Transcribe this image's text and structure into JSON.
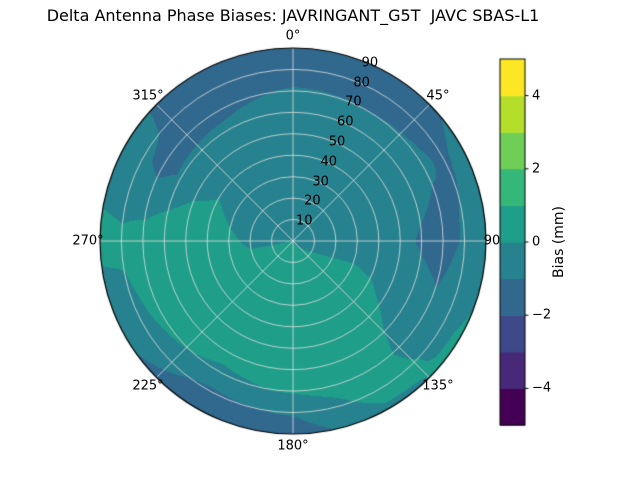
{
  "chart_data": {
    "type": "heatmap",
    "projection": "polar",
    "title": "Delta Antenna Phase Biases: JAVRINGANT_G5T  JAVC SBAS-L1",
    "azimuth_deg": [
      0,
      30,
      60,
      90,
      120,
      150,
      180,
      210,
      240,
      270,
      300,
      330
    ],
    "zenith_deg": [
      0,
      10,
      20,
      30,
      40,
      50,
      60,
      70,
      80,
      90
    ],
    "bias_mm": [
      [
        -0.2,
        -0.3,
        -0.4,
        -0.4,
        -0.3,
        -0.4,
        -0.6,
        -0.9,
        -1.4,
        -1.7
      ],
      [
        -0.2,
        -0.3,
        -0.4,
        -0.5,
        -0.5,
        -0.5,
        -0.7,
        -1.0,
        -1.5,
        -1.4
      ],
      [
        -0.2,
        -0.2,
        -0.3,
        -0.5,
        -0.6,
        -0.6,
        -0.7,
        -0.9,
        -1.1,
        -0.8
      ],
      [
        -0.2,
        -0.2,
        -0.3,
        -0.4,
        -0.6,
        -0.8,
        -1.1,
        -1.3,
        -0.9,
        -0.4
      ],
      [
        -0.1,
        0.0,
        0.1,
        0.2,
        0.1,
        -0.2,
        -0.6,
        -0.8,
        -0.3,
        0.2
      ],
      [
        0.0,
        0.2,
        0.4,
        0.5,
        0.6,
        0.7,
        0.6,
        0.5,
        0.4,
        -0.2
      ],
      [
        0.1,
        0.3,
        0.5,
        0.6,
        0.6,
        0.5,
        0.4,
        0.1,
        -0.9,
        -1.6
      ],
      [
        0.1,
        0.3,
        0.5,
        0.6,
        0.5,
        0.5,
        0.3,
        -0.2,
        -1.2,
        -1.5
      ],
      [
        0.1,
        0.2,
        0.4,
        0.6,
        0.7,
        0.8,
        0.6,
        0.3,
        -0.4,
        -0.9
      ],
      [
        0.0,
        -0.1,
        -0.2,
        0.2,
        0.6,
        0.9,
        0.8,
        0.5,
        0.2,
        0.3
      ],
      [
        -0.1,
        -0.3,
        -0.5,
        -0.3,
        0.0,
        -0.3,
        -0.9,
        -1.3,
        -0.8,
        -0.6
      ],
      [
        -0.2,
        -0.3,
        -0.5,
        -0.5,
        -0.3,
        -0.4,
        -0.8,
        -1.2,
        -1.5,
        -1.6
      ]
    ],
    "theta_tick_degrees": [
      0,
      45,
      90,
      135,
      180,
      225,
      270,
      315
    ],
    "theta_tick_labels": [
      "0°",
      "45°",
      "90",
      "135°",
      "180°",
      "225°",
      "270°",
      "315°"
    ],
    "radial_tick_values": [
      10,
      20,
      30,
      40,
      50,
      60,
      70,
      80,
      90
    ],
    "radial_tick_labels": [
      "10",
      "20",
      "30",
      "40",
      "50",
      "60",
      "70",
      "80",
      "90"
    ],
    "colorbar": {
      "label": "Bias (mm)",
      "colormap": "viridis",
      "range": [
        -5,
        5
      ],
      "band_step": 1,
      "ticks": [
        -4,
        -2,
        0,
        2,
        4
      ],
      "colors": [
        "#440154",
        "#482878",
        "#3e4989",
        "#31688e",
        "#26828e",
        "#1f9e89",
        "#35b779",
        "#6ece58",
        "#b5de2b",
        "#fde725"
      ]
    },
    "colorbar_tick_labels": [
      "−4",
      "−2",
      "0",
      "2",
      "4"
    ],
    "grid": "on",
    "grid_color": "#e0e0e0"
  }
}
